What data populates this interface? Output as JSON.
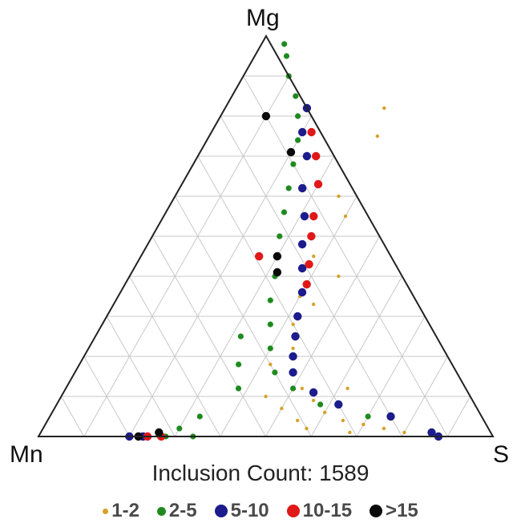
{
  "chart_data": {
    "type": "ternary-scatter",
    "vertices": {
      "top": "Mg",
      "left": "Mn",
      "right": "S"
    },
    "grid": true,
    "grid_divisions": 10,
    "caption": "Inclusion Count: 1589",
    "legend": [
      {
        "label": "1-2",
        "color": "#d8a028",
        "size": "tiny"
      },
      {
        "label": "2-5",
        "color": "#1f8a1f",
        "size": "small"
      },
      {
        "label": "5-10",
        "color": "#1c1c8c",
        "size": "medium"
      },
      {
        "label": "10-15",
        "color": "#e01818",
        "size": "medium"
      },
      {
        "label": ">15",
        "color": "#0a0a0a",
        "size": "medium"
      }
    ],
    "series": [
      {
        "name": "1-2",
        "points_S_Mg": [
          [
            0.4,
            0.55
          ],
          [
            0.38,
            0.45
          ],
          [
            0.4,
            0.35
          ],
          [
            0.42,
            0.28
          ],
          [
            0.45,
            0.22
          ],
          [
            0.48,
            0.16
          ],
          [
            0.52,
            0.12
          ],
          [
            0.56,
            0.09
          ],
          [
            0.6,
            0.06
          ],
          [
            0.65,
            0.04
          ],
          [
            0.7,
            0.03
          ],
          [
            0.75,
            0.02
          ],
          [
            0.8,
            0.01
          ],
          [
            0.55,
            0.04
          ],
          [
            0.5,
            0.07
          ],
          [
            0.45,
            0.1
          ],
          [
            0.42,
            0.18
          ],
          [
            0.36,
            0.6
          ],
          [
            0.37,
            0.75
          ],
          [
            0.35,
            0.82
          ],
          [
            0.46,
            0.4
          ],
          [
            0.44,
            0.33
          ],
          [
            0.58,
            0.02
          ],
          [
            0.68,
            0.01
          ],
          [
            0.62,
            0.12
          ]
        ]
      },
      {
        "name": "2-5",
        "points_S_Mg": [
          [
            0.05,
            0.98
          ],
          [
            0.07,
            0.95
          ],
          [
            0.1,
            0.9
          ],
          [
            0.14,
            0.85
          ],
          [
            0.17,
            0.8
          ],
          [
            0.2,
            0.74
          ],
          [
            0.22,
            0.68
          ],
          [
            0.24,
            0.62
          ],
          [
            0.26,
            0.56
          ],
          [
            0.28,
            0.5
          ],
          [
            0.3,
            0.45
          ],
          [
            0.32,
            0.4
          ],
          [
            0.34,
            0.34
          ],
          [
            0.37,
            0.28
          ],
          [
            0.4,
            0.22
          ],
          [
            0.44,
            0.16
          ],
          [
            0.5,
            0.12
          ],
          [
            0.58,
            0.08
          ],
          [
            0.7,
            0.05
          ],
          [
            0.32,
            0.25
          ],
          [
            0.35,
            0.18
          ],
          [
            0.38,
            0.12
          ],
          [
            0.33,
            0.05
          ],
          [
            0.3,
            0.02
          ],
          [
            0.28,
            0.0
          ],
          [
            0.34,
            0.0
          ]
        ]
      },
      {
        "name": "5-10",
        "points_S_Mg": [
          [
            0.18,
            0.82
          ],
          [
            0.2,
            0.76
          ],
          [
            0.24,
            0.7
          ],
          [
            0.27,
            0.62
          ],
          [
            0.31,
            0.55
          ],
          [
            0.34,
            0.48
          ],
          [
            0.37,
            0.42
          ],
          [
            0.4,
            0.36
          ],
          [
            0.42,
            0.3
          ],
          [
            0.44,
            0.25
          ],
          [
            0.46,
            0.2
          ],
          [
            0.48,
            0.16
          ],
          [
            0.55,
            0.11
          ],
          [
            0.62,
            0.08
          ],
          [
            0.75,
            0.05
          ],
          [
            0.86,
            0.01
          ],
          [
            0.88,
            0.0
          ],
          [
            0.2,
            0.0
          ],
          [
            0.23,
            0.0
          ]
        ]
      },
      {
        "name": "10-15",
        "points_S_Mg": [
          [
            0.22,
            0.76
          ],
          [
            0.26,
            0.7
          ],
          [
            0.3,
            0.63
          ],
          [
            0.33,
            0.55
          ],
          [
            0.35,
            0.5
          ],
          [
            0.38,
            0.43
          ],
          [
            0.4,
            0.38
          ],
          [
            0.26,
            0.45
          ],
          [
            0.24,
            0.0
          ],
          [
            0.27,
            0.0
          ]
        ]
      },
      {
        "name": ">15",
        "points_S_Mg": [
          [
            0.1,
            0.8
          ],
          [
            0.2,
            0.71
          ],
          [
            0.3,
            0.45
          ],
          [
            0.32,
            0.41
          ],
          [
            0.22,
            0.0
          ],
          [
            0.26,
            0.01
          ]
        ]
      }
    ]
  }
}
